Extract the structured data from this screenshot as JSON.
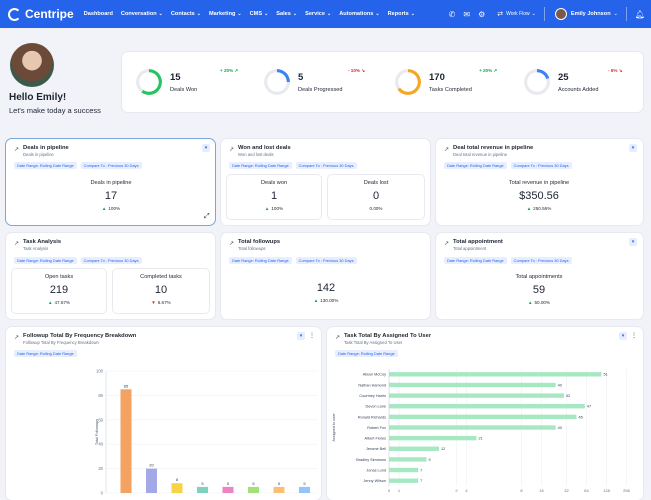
{
  "nav": {
    "brand": "Centripe",
    "menu": [
      {
        "label": "Dashboard",
        "chev": ""
      },
      {
        "label": "Conversation",
        "chev": "⌄"
      },
      {
        "label": "Contacts",
        "chev": "⌄"
      },
      {
        "label": "Marketing",
        "chev": "⌄"
      },
      {
        "label": "CMS",
        "chev": "⌄"
      },
      {
        "label": "Sales",
        "chev": "⌄"
      },
      {
        "label": "Service",
        "chev": "⌄"
      },
      {
        "label": "Automations",
        "chev": "⌄"
      },
      {
        "label": "Reports",
        "chev": "⌄"
      }
    ],
    "workflow": "Work Flow",
    "user": "Emily Johnson"
  },
  "greeting": {
    "title": "Hello Emily!",
    "subtitle": "Let's make today a success"
  },
  "stats": [
    {
      "value": "15",
      "label": "Deals Won",
      "delta": "+ 20% ↗",
      "dir": "up",
      "progress": 0.6,
      "color": "#22c55e"
    },
    {
      "value": "5",
      "label": "Deals Progressed",
      "delta": "- 10% ↘",
      "dir": "down",
      "progress": 0.25,
      "color": "#3b82f6"
    },
    {
      "value": "170",
      "label": "Tasks Completed",
      "delta": "+ 20% ↗",
      "dir": "up",
      "progress": 0.65,
      "color": "#f5a623"
    },
    {
      "value": "25",
      "label": "Accounts Added",
      "delta": "- 5% ↘",
      "dir": "down",
      "progress": 0.2,
      "color": "#3b82f6"
    }
  ],
  "widgets": {
    "deals_pipeline": {
      "title": "Deals in pipeline",
      "sub": "Deals in pipeline",
      "chip1": "Date Range: Rolling Date Range",
      "chip2": "Compare To : Previous 30 Days",
      "label": "Deals in pipeline",
      "value": "17",
      "pct": "100%"
    },
    "won_lost": {
      "title": "Won and lost deals",
      "sub": "Won and lost deals",
      "chip1": "Date Range: Rolling Date Range",
      "chip2": "Compare To : Previous 30 Days",
      "won_label": "Deals won",
      "won_value": "1",
      "won_pct": "100%",
      "lost_label": "Deals lost",
      "lost_value": "0",
      "lost_pct": "0.00%"
    },
    "revenue": {
      "title": "Deal total revenue in pipeline",
      "sub": "Deal total revenue in pipeline",
      "chip1": "Date Range: Rolling Date Range",
      "chip2": "Compare To : Previous 30 Days",
      "label": "Total revenue in pipeline",
      "value": "$350.56",
      "pct": "250.56%"
    },
    "tasks": {
      "title": "Task Analysis",
      "sub": "Task Analysis",
      "chip1": "Date Range: Rolling Date Range",
      "chip2": "Compare To : Previous 30 Days",
      "open_label": "Open tasks",
      "open_value": "219",
      "open_pct": "47.67%",
      "done_label": "Completed tasks",
      "done_value": "10",
      "done_pct": "6.67%"
    },
    "followups": {
      "title": "Total followups",
      "sub": "Total followups",
      "chip1": "Date Range: Rolling Date Range",
      "chip2": "Compare To : Previous 30 Days",
      "value": "142",
      "pct": "130.00%"
    },
    "appointments": {
      "title": "Total appointment",
      "sub": "Total appointment",
      "chip1": "Date Range: Rolling Date Range",
      "chip2": "Compare To : Previous 30 Days",
      "label": "Total appointments",
      "value": "59",
      "pct": "50.00%"
    },
    "freq": {
      "title": "Followup Total By Frequency Breakdown",
      "sub": "Followup Total By Frequency Breakdown",
      "chip1": "Date Range: Rolling Date Range"
    },
    "assignee": {
      "title": "Task Total By Assigned To User",
      "sub": "Task Total By Assigned To User",
      "chip1": "Date Range: Rolling Date Range"
    }
  },
  "chart_data": [
    {
      "type": "bar",
      "title": "Followup Total By Frequency Breakdown",
      "ylabel": "Total Followups",
      "ylim": [
        0,
        100
      ],
      "yticks": [
        0,
        20,
        40,
        60,
        80,
        100
      ],
      "values": [
        85,
        20,
        8,
        5,
        5,
        5,
        5,
        5
      ],
      "value_labels": [
        "85",
        "20",
        "8",
        "5",
        "5",
        "5",
        "5",
        "5"
      ],
      "colors": [
        "#f4a261",
        "#a3a8e6",
        "#f5d547",
        "#7dd3c0",
        "#ee82c4",
        "#a3e07a",
        "#fbbf77",
        "#93c5fd"
      ]
    },
    {
      "type": "bar",
      "orientation": "horizontal",
      "title": "Task Total By Assigned To User",
      "ylabel": "Assigned to user",
      "categories": [
        "Alison McCoy",
        "Nathan Hamond",
        "Courtney Harris",
        "Devon Lane",
        "Ronald Richards",
        "Robert Fox",
        "Albert Flores",
        "Jerome Bell",
        "Bradley Simmons",
        "Jonas Lund",
        "Jenny Wilson"
      ],
      "values": [
        51,
        40,
        42,
        47,
        45,
        40,
        21,
        12,
        9,
        7,
        7
      ],
      "value_labels": [
        "51",
        "40",
        "42",
        "47",
        "45",
        "40",
        "21",
        "12",
        "9",
        "7",
        "7"
      ],
      "xticks": [
        "0",
        "1",
        "2",
        "4",
        "8",
        "16",
        "32",
        "64",
        "128",
        "256"
      ],
      "color": "#a7e8c2"
    }
  ]
}
